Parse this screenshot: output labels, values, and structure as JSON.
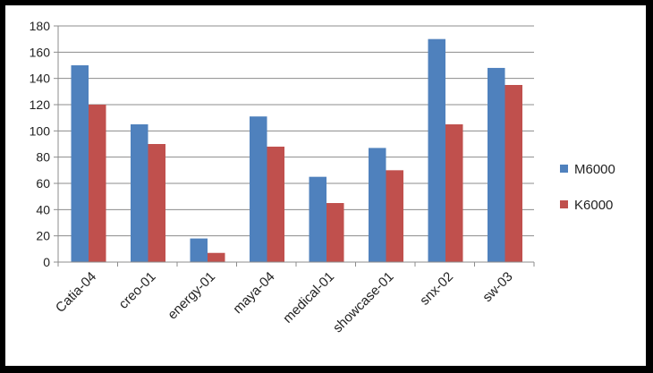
{
  "chart_data": {
    "type": "bar",
    "title": "",
    "xlabel": "",
    "ylabel": "",
    "categories": [
      "Catia-04",
      "creo-01",
      "energy-01",
      "maya-04",
      "medical-01",
      "showcase-01",
      "snx-02",
      "sw-03"
    ],
    "series": [
      {
        "name": "M6000",
        "color": "#4f81bd",
        "values": [
          150,
          105,
          18,
          111,
          65,
          87,
          170,
          148
        ]
      },
      {
        "name": "K6000",
        "color": "#c0504d",
        "values": [
          120,
          90,
          7,
          88,
          45,
          70,
          105,
          135
        ]
      }
    ],
    "ylim": [
      0,
      180
    ],
    "yticks": [
      0,
      20,
      40,
      60,
      80,
      100,
      120,
      140,
      160,
      180
    ],
    "grid": true,
    "legend_position": "right"
  }
}
